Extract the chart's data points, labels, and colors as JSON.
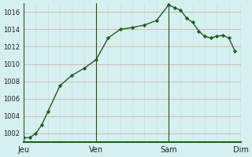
{
  "title": "",
  "background_color": "#d6f0f0",
  "line_color": "#1a6020",
  "marker_color": "#1a6020",
  "ylabel_values": [
    1002,
    1004,
    1006,
    1008,
    1010,
    1012,
    1014,
    1016
  ],
  "xlim": [
    0,
    36
  ],
  "ylim": [
    1001,
    1017
  ],
  "x_ticks": [
    0,
    12,
    24,
    36
  ],
  "x_tick_labels": [
    "Jeu",
    "Ven",
    "Sam",
    "Dim"
  ],
  "data_x": [
    0,
    1,
    2,
    3,
    4,
    6,
    8,
    10,
    12,
    14,
    16,
    18,
    20,
    22,
    24,
    25,
    26,
    27,
    28,
    29,
    30,
    31,
    32,
    33,
    34,
    35
  ],
  "data_y": [
    1001.5,
    1001.5,
    1002.0,
    1003.0,
    1004.5,
    1007.5,
    1008.7,
    1009.5,
    1010.5,
    1013.0,
    1014.0,
    1014.2,
    1014.5,
    1015.0,
    1016.8,
    1016.5,
    1016.2,
    1015.3,
    1014.8,
    1013.8,
    1013.2,
    1013.0,
    1013.2,
    1013.3,
    1013.0,
    1011.5
  ]
}
